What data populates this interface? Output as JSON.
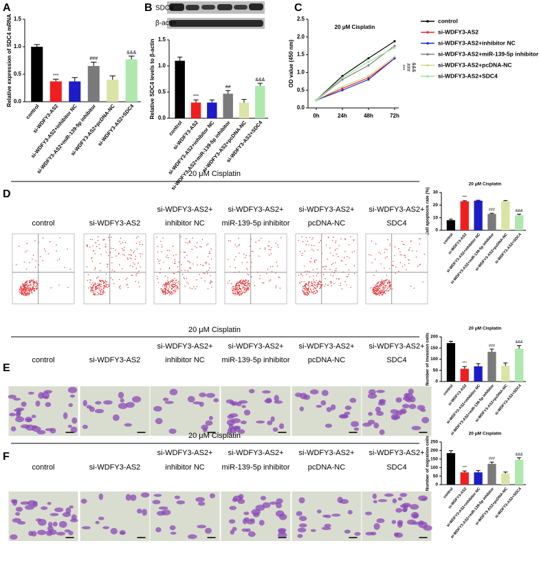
{
  "chart_data": [
    {
      "type": "bar",
      "panel": "A",
      "ylabel": "Relative expression of SDC4 mRNA",
      "categories": [
        "control",
        "si-WDFY3-AS2",
        "si-WDFY3-AS2+inhibitor NC",
        "si-WDFY3-AS2+miR-139-5p inhibitor",
        "si-WDFY3-AS2+pcDNA-NC",
        "si-WDFY3-AS2+SDC4"
      ],
      "values": [
        1.0,
        0.37,
        0.37,
        0.65,
        0.4,
        0.77
      ],
      "errors": [
        0.04,
        0.04,
        0.07,
        0.07,
        0.07,
        0.06
      ],
      "markers": [
        null,
        "***",
        null,
        "###",
        null,
        "&&&"
      ],
      "colors": [
        "#000000",
        "#f01e1e",
        "#1c1cc8",
        "#7a7a7a",
        "#d9e4a6",
        "#aee8ae"
      ],
      "ylim": [
        0,
        1.5
      ],
      "yticks": [
        {
          "value": 0,
          "label": "0.0"
        },
        0.5,
        {
          "value": 1,
          "label": "1.0"
        },
        1.5
      ]
    },
    {
      "type": "bar",
      "panel": "B",
      "ylabel": "Relative SDC4 levels to β-actin",
      "blot_labels": [
        "SDC4",
        "β-actin"
      ],
      "categories": [
        "control",
        "si-WDFY3-AS2",
        "si-WDFY3-AS2+inhibitor NC",
        "si-WDFY3-AS2+miR-139-5p inhibitor",
        "si-WDFY3-AS2+pcDNA-NC",
        "si-WDFY3-AS2+SDC4"
      ],
      "values": [
        1.1,
        0.3,
        0.3,
        0.47,
        0.3,
        0.62
      ],
      "errors": [
        0.07,
        0.05,
        0.05,
        0.06,
        0.06,
        0.05
      ],
      "markers": [
        null,
        "***",
        null,
        "##",
        null,
        "&&&"
      ],
      "colors": [
        "#000000",
        "#f01e1e",
        "#1c1cc8",
        "#7a7a7a",
        "#d9e4a6",
        "#aee8ae"
      ],
      "ylim": [
        0,
        1.5
      ],
      "yticks": [
        {
          "value": 0,
          "label": "0.0"
        },
        0.5,
        {
          "value": 1,
          "label": "1.0"
        },
        1.5
      ]
    },
    {
      "type": "line",
      "panel": "C",
      "title": "20 μM Cisplatin",
      "ylabel": "OD value (450 nm)",
      "categories": [
        "0h",
        "24h",
        "48h",
        "72h"
      ],
      "series": [
        {
          "name": "control",
          "color": "#000000",
          "values": [
            0.22,
            0.9,
            1.4,
            1.88
          ]
        },
        {
          "name": "si-WDFY3-AS2",
          "color": "#e8262a",
          "values": [
            0.22,
            0.55,
            0.85,
            1.4
          ]
        },
        {
          "name": "si-WDFY3-AS2+inhibitor NC",
          "color": "#1f2bbd",
          "values": [
            0.22,
            0.5,
            0.8,
            1.4
          ]
        },
        {
          "name": "si-WDFY3-AS2+miR-139-5p inhibitor",
          "color": "#808080",
          "values": [
            0.22,
            0.8,
            1.2,
            1.75
          ]
        },
        {
          "name": "si-WDFY3-AS2+pcDNA-NC",
          "color": "#c8dc8c",
          "values": [
            0.22,
            0.6,
            0.9,
            1.45
          ]
        },
        {
          "name": "si-WDFY3-AS2+SDC4",
          "color": "#9ee09e",
          "values": [
            0.22,
            0.85,
            1.3,
            1.7
          ]
        }
      ],
      "annotations": [
        "***",
        "###",
        "&&&"
      ],
      "ylim": [
        0,
        2.5
      ],
      "yticks": [
        {
          "value": 0,
          "label": "0.0"
        },
        0.5,
        {
          "value": 1,
          "label": "1.0"
        },
        1.5,
        {
          "value": 2,
          "label": "2.0"
        },
        2.5
      ]
    },
    {
      "type": "bar",
      "title": "20 μM Cisplatin",
      "ylabel": "Cell apoptosis rate (%)",
      "categories": [
        "control",
        "si-WDFY3-AS2",
        "si-WDFY3-AS2+inhibitor NC",
        "si-WDFY3-AS2+miR-139-5p inhibitor",
        "si-WDFY3-AS2+pcDNA-NC",
        "si-WDFY3-AS2+SDC4"
      ],
      "values": [
        8,
        23,
        23.5,
        13,
        23,
        12
      ],
      "errors": [
        0.8,
        0.5,
        0.4,
        0.5,
        0.6,
        0.8
      ],
      "markers": [
        null,
        "***",
        null,
        "###",
        null,
        "&&&"
      ],
      "colors": [
        "#000000",
        "#f01e1e",
        "#1c1cc8",
        "#7a7a7a",
        "#d9e4a6",
        "#aee8ae"
      ],
      "ylim": [
        0,
        30
      ],
      "yticks": [
        0,
        10,
        20,
        30
      ]
    },
    {
      "type": "bar",
      "title": "20 μM Cisplatin",
      "ylabel": "Number of invasion cells",
      "categories": [
        "control",
        "si-WDFY3-AS2",
        "si-WDFY3-AS2+inhibitor NC",
        "si-WDFY3-AS2+miR-139-5p inhibitor",
        "si-WDFY3-AS2+pcDNA-NC",
        "si-WDFY3-AS2+SDC4"
      ],
      "values": [
        172,
        57,
        68,
        133,
        70,
        147
      ],
      "errors": [
        8,
        10,
        12,
        12,
        13,
        14
      ],
      "markers": [
        null,
        "***",
        null,
        "###",
        null,
        "&&&"
      ],
      "colors": [
        "#000000",
        "#f01e1e",
        "#1c1cc8",
        "#7a7a7a",
        "#d9e4a6",
        "#aee8ae"
      ],
      "ylim": [
        0,
        200
      ],
      "yticks": [
        0,
        50,
        100,
        150,
        200
      ]
    },
    {
      "type": "bar",
      "title": "20 μM Cisplatin",
      "ylabel": "Number of migration cells",
      "categories": [
        "control",
        "si-WDFY3-AS2",
        "si-WDFY3-AS2+inhibitor NC",
        "si-WDFY3-AS2+miR-139-5p inhibitor",
        "si-WDFY3-AS2+pcDNA-NC",
        "si-WDFY3-AS2+SDC4"
      ],
      "values": [
        185,
        72,
        72,
        122,
        65,
        146
      ],
      "errors": [
        14,
        8,
        10,
        10,
        9,
        12
      ],
      "markers": [
        null,
        "***",
        null,
        "###",
        null,
        "&&&"
      ],
      "colors": [
        "#000000",
        "#f01e1e",
        "#1c1cc8",
        "#7a7a7a",
        "#d9e4a6",
        "#aee8ae"
      ],
      "ylim": [
        0,
        250
      ],
      "yticks": [
        0,
        50,
        100,
        150,
        200,
        250
      ]
    }
  ],
  "rows": [
    {
      "panel": "D",
      "title": "20 μM Cisplatin",
      "groups": [
        [
          "control"
        ],
        [
          "si-WDFY3-AS2"
        ],
        [
          "si-WDFY3-AS2+",
          "inhibitor NC"
        ],
        [
          "si-WDFY3-AS2+",
          "miR-139-5p inhibitor"
        ],
        [
          "si-WDFY3-AS2+",
          "pcDNA-NC"
        ],
        [
          "si-WDFY3-AS2+",
          "SDC4"
        ]
      ]
    },
    {
      "panel": "E",
      "title": "20 μM Cisplatin",
      "groups": [
        [
          "control"
        ],
        [
          "si-WDFY3-AS2"
        ],
        [
          "si-WDFY3-AS2+",
          "inhibitor NC"
        ],
        [
          "si-WDFY3-AS2+",
          "miR-139-5p inhibitor"
        ],
        [
          "si-WDFY3-AS2+",
          "pcDNA-NC"
        ],
        [
          "si-WDFY3-AS2+",
          "SDC4"
        ]
      ]
    },
    {
      "panel": "F",
      "title": "20 μM Cisplatin",
      "groups": [
        [
          "control"
        ],
        [
          "si-WDFY3-AS2"
        ],
        [
          "si-WDFY3-AS2+",
          "inhibitor NC"
        ],
        [
          "si-WDFY3-AS2+",
          "miR-139-5p inhibitor"
        ],
        [
          "si-WDFY3-AS2+",
          "pcDNA-NC"
        ],
        [
          "si-WDFY3-AS2+",
          "SDC4"
        ]
      ]
    }
  ]
}
